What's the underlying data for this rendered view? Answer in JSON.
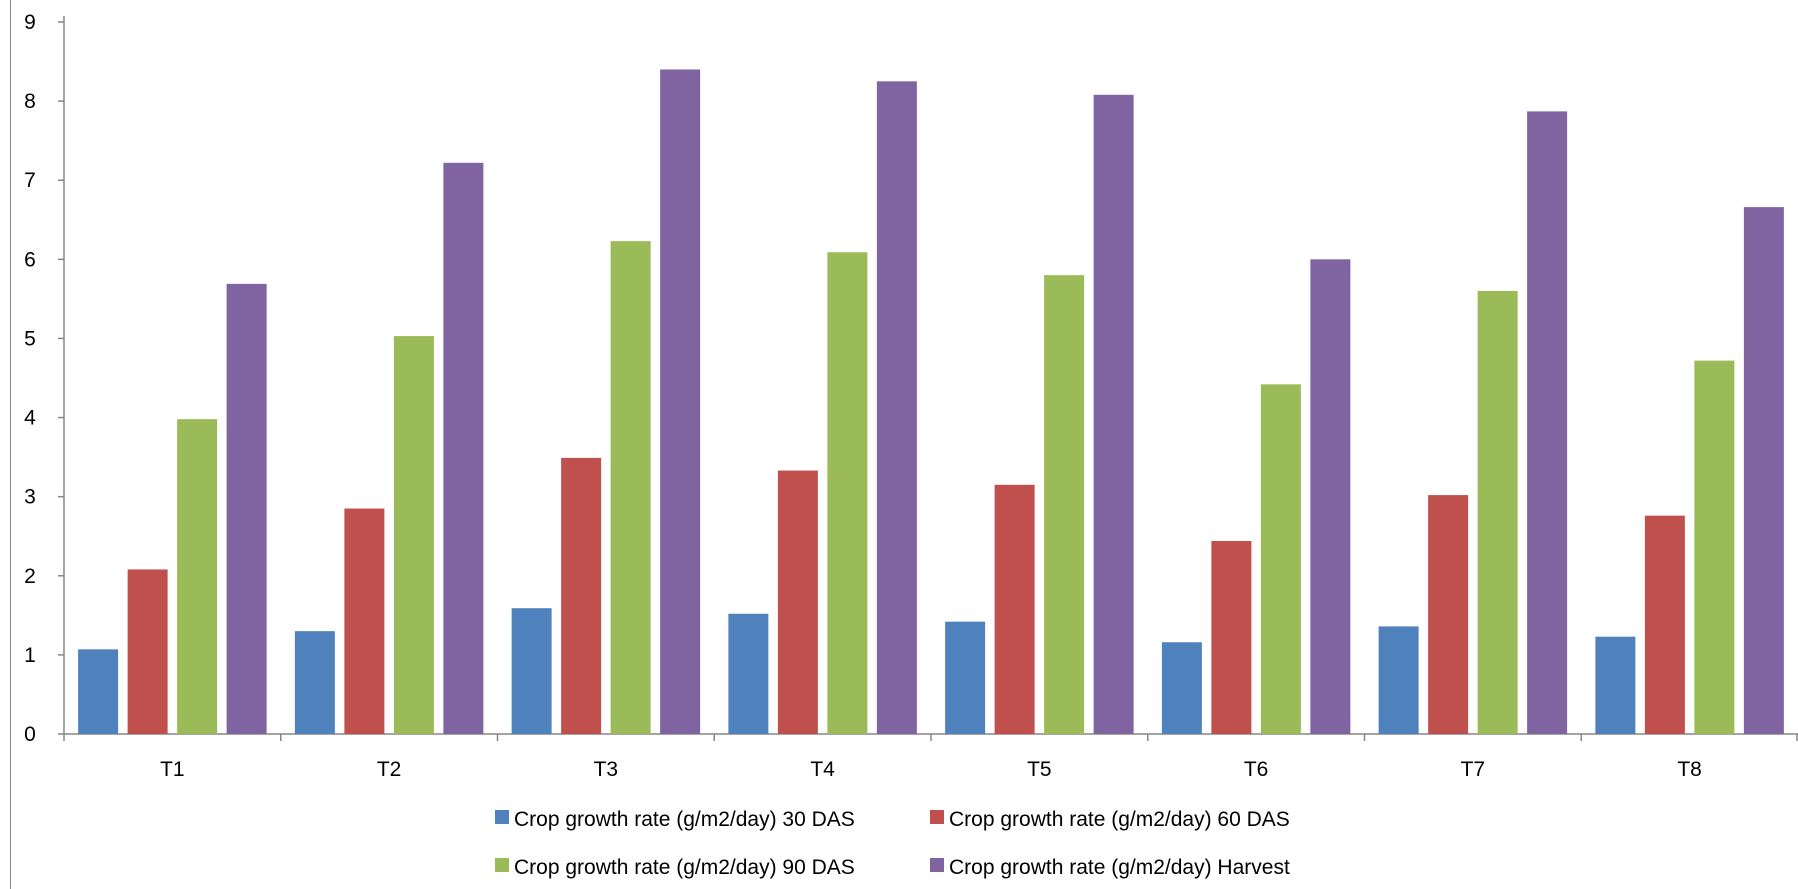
{
  "chart_data": {
    "type": "bar",
    "title": "",
    "xlabel": "",
    "ylabel": "",
    "ylim": [
      0,
      9
    ],
    "yticks": [
      0,
      1,
      2,
      3,
      4,
      5,
      6,
      7,
      8,
      9
    ],
    "grid": false,
    "legend_position": "bottom",
    "categories": [
      "T1",
      "T2",
      "T3",
      "T4",
      "T5",
      "T6",
      "T7",
      "T8"
    ],
    "series": [
      {
        "name": "Crop growth rate (g/m2/day) 30 DAS",
        "color": "#4F81BD",
        "values": [
          1.07,
          1.3,
          1.59,
          1.52,
          1.42,
          1.16,
          1.36,
          1.23
        ]
      },
      {
        "name": "Crop growth rate (g/m2/day) 60 DAS",
        "color": "#C0504D",
        "values": [
          2.08,
          2.85,
          3.49,
          3.33,
          3.15,
          2.44,
          3.02,
          2.76
        ]
      },
      {
        "name": "Crop growth rate (g/m2/day) 90 DAS",
        "color": "#9BBB59",
        "values": [
          3.98,
          5.03,
          6.23,
          6.09,
          5.8,
          4.42,
          5.6,
          4.72
        ]
      },
      {
        "name": "Crop growth rate (g/m2/day) Harvest",
        "color": "#8064A2",
        "values": [
          5.69,
          7.22,
          8.4,
          8.25,
          8.08,
          6.0,
          7.87,
          6.66
        ]
      }
    ]
  }
}
